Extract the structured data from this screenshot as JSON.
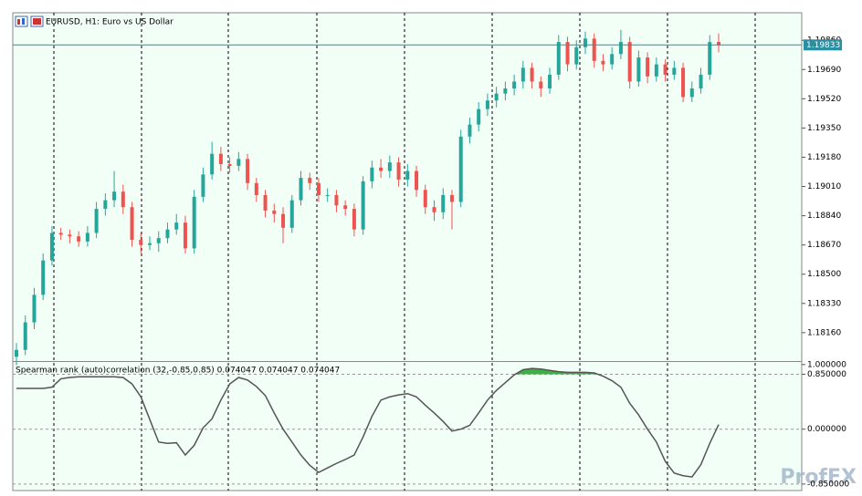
{
  "chart_data": [
    {
      "type": "candlestick",
      "title": "EURUSD, H1:  Euro vs US Dollar",
      "open": [
        1.1802,
        1.1806,
        1.1822,
        1.1838,
        1.1858,
        1.1874,
        1.1873,
        1.1872,
        1.1869,
        1.1874,
        1.1888,
        1.1893,
        1.1898,
        1.1889,
        1.187,
        1.1867,
        1.1868,
        1.1871,
        1.1876,
        1.188,
        1.1865,
        1.1895,
        1.1908,
        1.192,
        1.1914,
        1.1913,
        1.1917,
        1.1903,
        1.1896,
        1.1887,
        1.1885,
        1.1877,
        1.1893,
        1.1906,
        1.1903,
        1.1896,
        1.1896,
        1.189,
        1.1888,
        1.1876,
        1.1904,
        1.1912,
        1.191,
        1.1915,
        1.1905,
        1.191,
        1.1899,
        1.1889,
        1.1886,
        1.1896,
        1.1892,
        1.193,
        1.1937,
        1.1946,
        1.1951,
        1.1955,
        1.1958,
        1.1962,
        1.197,
        1.1962,
        1.1958,
        1.1966,
        1.1985,
        1.1972,
        1.1982,
        1.1987,
        1.1974,
        1.1972,
        1.1978,
        1.1985,
        1.1962,
        1.1976,
        1.1965,
        1.1972,
        1.1966,
        1.197,
        1.1953,
        1.1958,
        1.1966,
        1.1985
      ],
      "high": [
        1.181,
        1.1826,
        1.1842,
        1.1862,
        1.1878,
        1.1877,
        1.1876,
        1.1875,
        1.1878,
        1.1892,
        1.1897,
        1.191,
        1.1902,
        1.1892,
        1.1874,
        1.1872,
        1.1875,
        1.188,
        1.1885,
        1.1884,
        1.1899,
        1.1912,
        1.1927,
        1.1924,
        1.1918,
        1.1921,
        1.192,
        1.1906,
        1.1899,
        1.1891,
        1.1889,
        1.1896,
        1.191,
        1.1909,
        1.1906,
        1.19,
        1.1899,
        1.1893,
        1.1891,
        1.1907,
        1.1916,
        1.1917,
        1.1919,
        1.1918,
        1.1914,
        1.1913,
        1.1902,
        1.1893,
        1.19,
        1.1899,
        1.1934,
        1.1941,
        1.195,
        1.1955,
        1.1959,
        1.1962,
        1.1966,
        1.1974,
        1.1973,
        1.1965,
        1.197,
        1.1989,
        1.1988,
        1.1986,
        1.1991,
        1.199,
        1.1978,
        1.1982,
        1.1992,
        1.1988,
        1.198,
        1.1979,
        1.1976,
        1.1975,
        1.1974,
        1.1973,
        1.1962,
        1.197,
        1.1989,
        1.199
      ],
      "low": [
        1.1797,
        1.1803,
        1.1818,
        1.1835,
        1.1855,
        1.187,
        1.1868,
        1.1866,
        1.1866,
        1.1871,
        1.1884,
        1.1889,
        1.1885,
        1.1866,
        1.1862,
        1.1864,
        1.1863,
        1.1868,
        1.1873,
        1.1862,
        1.1862,
        1.1892,
        1.1905,
        1.191,
        1.1909,
        1.191,
        1.1899,
        1.1892,
        1.1883,
        1.188,
        1.1868,
        1.1874,
        1.189,
        1.1899,
        1.1892,
        1.1892,
        1.1886,
        1.1884,
        1.1872,
        1.1873,
        1.19,
        1.1906,
        1.1906,
        1.1901,
        1.1901,
        1.1895,
        1.1885,
        1.1881,
        1.1882,
        1.1876,
        1.1889,
        1.1926,
        1.1933,
        1.1942,
        1.1947,
        1.1951,
        1.1954,
        1.1958,
        1.1958,
        1.1953,
        1.1955,
        1.1963,
        1.1968,
        1.1969,
        1.1978,
        1.197,
        1.1968,
        1.1969,
        1.1975,
        1.1958,
        1.1959,
        1.1961,
        1.1962,
        1.1962,
        1.1963,
        1.195,
        1.195,
        1.1955,
        1.1963,
        1.1979
      ],
      "close": [
        1.1806,
        1.1822,
        1.1838,
        1.1858,
        1.1874,
        1.1873,
        1.1872,
        1.1869,
        1.1874,
        1.1888,
        1.1893,
        1.1898,
        1.1889,
        1.187,
        1.1867,
        1.1868,
        1.1871,
        1.1876,
        1.188,
        1.1865,
        1.1895,
        1.1908,
        1.192,
        1.1914,
        1.1913,
        1.1917,
        1.1903,
        1.1896,
        1.1887,
        1.1885,
        1.1877,
        1.1893,
        1.1906,
        1.1903,
        1.1896,
        1.1896,
        1.189,
        1.1888,
        1.1876,
        1.1904,
        1.1912,
        1.191,
        1.1915,
        1.1905,
        1.191,
        1.1899,
        1.1889,
        1.1886,
        1.1896,
        1.1892,
        1.193,
        1.1937,
        1.1946,
        1.1951,
        1.1955,
        1.1958,
        1.1962,
        1.197,
        1.1962,
        1.1958,
        1.1966,
        1.1985,
        1.1972,
        1.1982,
        1.1987,
        1.1974,
        1.1972,
        1.1978,
        1.1985,
        1.1962,
        1.1976,
        1.1965,
        1.1972,
        1.1966,
        1.197,
        1.1953,
        1.1958,
        1.1966,
        1.1985,
        1.1983
      ],
      "up_color": "#26a69a",
      "down_color": "#ef5350",
      "ylim": [
        1.17995,
        1.2002
      ],
      "yticks": [
        {
          "value": 1.1986,
          "label": "1.19860"
        },
        {
          "value": 1.1969,
          "label": "1.19690"
        },
        {
          "value": 1.1952,
          "label": "1.19520"
        },
        {
          "value": 1.1935,
          "label": "1.19350"
        },
        {
          "value": 1.1918,
          "label": "1.19180"
        },
        {
          "value": 1.1901,
          "label": "1.19010"
        },
        {
          "value": 1.1884,
          "label": "1.18840"
        },
        {
          "value": 1.1867,
          "label": "1.18670"
        },
        {
          "value": 1.185,
          "label": "1.18500"
        },
        {
          "value": 1.1833,
          "label": "1.18330"
        },
        {
          "value": 1.1816,
          "label": "1.18160"
        }
      ],
      "current_price": {
        "value": 1.19833,
        "label": "1.19833"
      },
      "price_line_color": "#2a8fa0"
    },
    {
      "type": "line",
      "title": "Spearman rank (auto)correlation (32,-0.85,0.85) 0.074047 0.074047 0.074047",
      "series": [
        {
          "color": "#555555",
          "values": [
            0.63,
            0.63,
            0.63,
            0.63,
            0.65,
            0.78,
            0.8,
            0.81,
            0.81,
            0.81,
            0.81,
            0.81,
            0.8,
            0.7,
            0.5,
            0.15,
            -0.2,
            -0.22,
            -0.21,
            -0.4,
            -0.25,
            0.02,
            0.16,
            0.45,
            0.7,
            0.8,
            0.76,
            0.66,
            0.52,
            0.25,
            0.0,
            -0.2,
            -0.4,
            -0.56,
            -0.67,
            -0.6,
            -0.53,
            -0.47,
            -0.4,
            -0.12,
            0.2,
            0.45,
            0.5,
            0.53,
            0.55,
            0.5,
            0.37,
            0.25,
            0.12,
            -0.03,
            0.0,
            0.06,
            0.25,
            0.45,
            0.6,
            0.72,
            0.84,
            0.92,
            0.94,
            0.93,
            0.91,
            0.89,
            0.88,
            0.88,
            0.88,
            0.87,
            0.82,
            0.75,
            0.65,
            0.4,
            0.22,
            0.0,
            -0.2,
            -0.5,
            -0.68,
            -0.72,
            -0.74,
            -0.55,
            -0.22,
            0.07
          ]
        }
      ],
      "ylim": [
        -0.95,
        1.04
      ],
      "yticks": [
        {
          "value": 1.0,
          "label": "1.000000"
        },
        {
          "value": 0.85,
          "label": "0.850000"
        },
        {
          "value": 0.0,
          "label": "0.000000"
        },
        {
          "value": -0.85,
          "label": "-0.850000"
        }
      ],
      "levels": [
        0.85,
        0.0,
        -0.85
      ],
      "fill_above": 0.85,
      "fill_color": "#3cb043"
    }
  ],
  "watermark": "ProfFX"
}
